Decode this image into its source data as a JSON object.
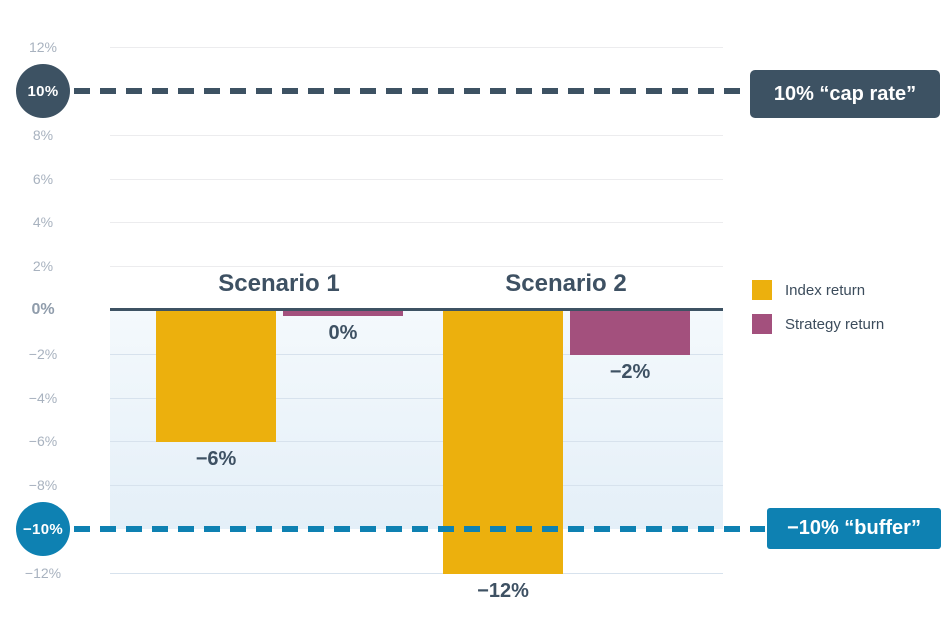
{
  "chart_data": {
    "type": "bar",
    "categories": [
      "Scenario 1",
      "Scenario 2"
    ],
    "series": [
      {
        "name": "Index return",
        "color": "#ecb00d",
        "values": [
          -6,
          -12
        ],
        "value_labels": [
          "−6%",
          "−12%"
        ]
      },
      {
        "name": "Strategy return",
        "color": "#a3507d",
        "values": [
          0,
          -2
        ],
        "value_labels": [
          "0%",
          "−2%"
        ]
      }
    ],
    "ylim": [
      -12,
      12
    ],
    "grid": true,
    "legend_position": "right",
    "y_ticks": [
      {
        "value": 12,
        "label": "12%"
      },
      {
        "value": 10,
        "label": "10%",
        "badge": true
      },
      {
        "value": 8,
        "label": "8%"
      },
      {
        "value": 6,
        "label": "6%"
      },
      {
        "value": 4,
        "label": "4%"
      },
      {
        "value": 2,
        "label": "2%"
      },
      {
        "value": 0,
        "label": "0%",
        "emphasis": true
      },
      {
        "value": -2,
        "label": "−2%"
      },
      {
        "value": -4,
        "label": "−4%"
      },
      {
        "value": -6,
        "label": "−6%"
      },
      {
        "value": -8,
        "label": "−8%"
      },
      {
        "value": -10,
        "label": "−10%",
        "badge": true
      },
      {
        "value": -12,
        "label": "−12%"
      }
    ],
    "reference_lines": [
      {
        "value": 10,
        "badge_label": "10%",
        "annotation": "10% “cap rate”",
        "color": "#3d5263"
      },
      {
        "value": -10,
        "badge_label": "−10%",
        "annotation": "−10% “buffer”",
        "color": "#0e81b2"
      }
    ],
    "shaded_zone": {
      "from": 0,
      "to": -10
    }
  },
  "legend": {
    "items": [
      {
        "label": "Index return",
        "color": "#ecb00d"
      },
      {
        "label": "Strategy return",
        "color": "#a3507d"
      }
    ]
  },
  "colors": {
    "navy": "#3d5263",
    "yellow": "#ecb00d",
    "purple": "#a3507d",
    "blue": "#0e81b2",
    "grid_above": "#ececee",
    "grid_below": "#d7e2ed"
  }
}
